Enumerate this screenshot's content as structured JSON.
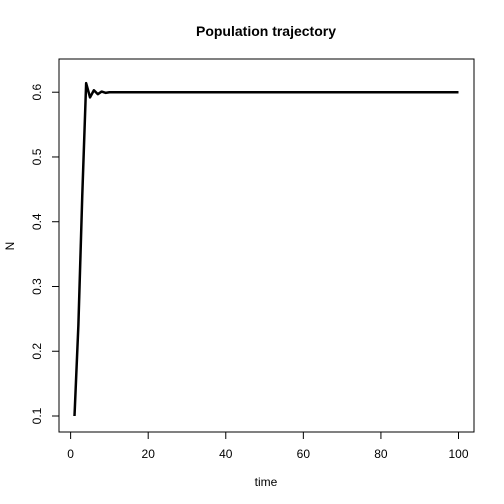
{
  "chart_data": {
    "type": "line",
    "title": "Population trajectory",
    "xlabel": "time",
    "ylabel": "N",
    "xlim": [
      1,
      100
    ],
    "ylim": [
      0.1,
      0.615
    ],
    "x_ticks": [
      0,
      20,
      40,
      60,
      80,
      100
    ],
    "y_ticks": [
      0.1,
      0.2,
      0.3,
      0.4,
      0.5,
      0.6
    ],
    "x_tick_labels": [
      "0",
      "20",
      "40",
      "60",
      "80",
      "100"
    ],
    "y_tick_labels": [
      "0.1",
      "0.2",
      "0.3",
      "0.4",
      "0.5",
      "0.6"
    ],
    "grid": false,
    "line_color": "#000000",
    "series": [
      {
        "x": [
          1,
          2,
          3,
          4,
          5,
          6,
          7,
          8,
          9,
          10,
          11,
          12,
          100
        ],
        "y": [
          0.1,
          0.24,
          0.44,
          0.614,
          0.592,
          0.603,
          0.597,
          0.601,
          0.599,
          0.6,
          0.6,
          0.6,
          0.6
        ]
      }
    ]
  }
}
